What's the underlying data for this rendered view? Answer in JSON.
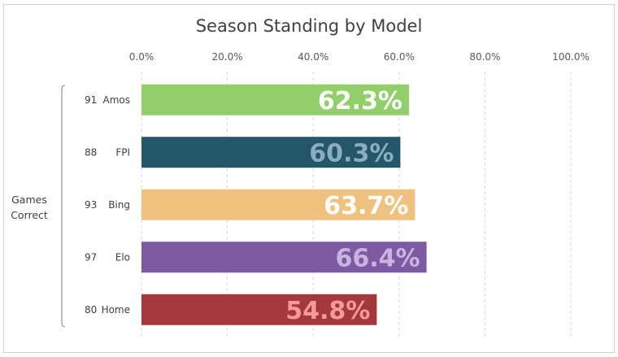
{
  "chart_data": {
    "type": "bar",
    "orientation": "horizontal",
    "title": "Season Standing by Model",
    "x_ticks": [
      "0.0%",
      "20.0%",
      "40.0%",
      "60.0%",
      "80.0%",
      "100.0%"
    ],
    "xlim": [
      0,
      100
    ],
    "grid": "vertical dashed",
    "group_label": [
      "Games",
      "Correct"
    ],
    "categories": [
      "Amos",
      "FPI",
      "Bing",
      "Elo",
      "Home"
    ],
    "games_correct": [
      "91",
      "88",
      "93",
      "97",
      "80"
    ],
    "values": [
      62.3,
      60.3,
      63.7,
      66.4,
      54.8
    ],
    "data_labels": [
      "62.3%",
      "60.3%",
      "63.7%",
      "66.4%",
      "54.8%"
    ],
    "bar_colors": [
      "#92cf6b",
      "#245669",
      "#efc27f",
      "#7d5aa1",
      "#a5383c"
    ],
    "label_colors": [
      "#ffffff",
      "#8cadbd",
      "#ffffff",
      "#c9b3e0",
      "#f59a9a"
    ]
  }
}
